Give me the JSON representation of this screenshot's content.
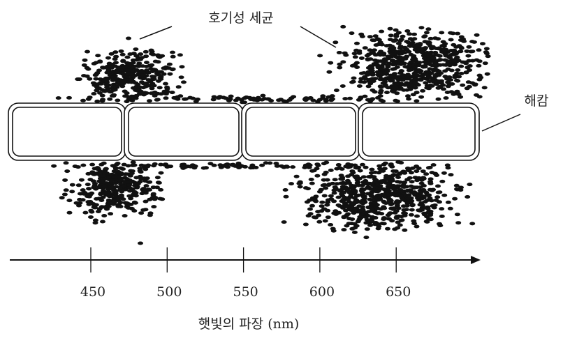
{
  "labels": {
    "bacteria": "호기성 세균",
    "algae": "해캄"
  },
  "axis": {
    "ticks": [
      450,
      500,
      550,
      600,
      650
    ],
    "label": "햇빛의 파장 (nm)"
  }
}
